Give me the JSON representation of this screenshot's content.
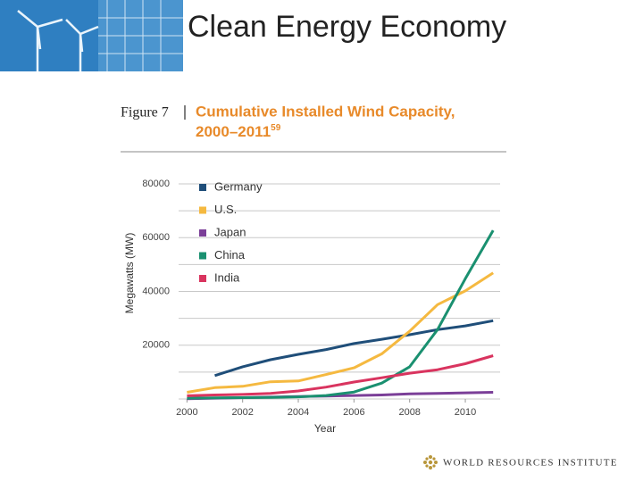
{
  "slide_title": "Clean Energy Economy",
  "figure_label": "Figure 7",
  "footer": "WORLD RESOURCES INSTITUTE",
  "chart_data": {
    "type": "line",
    "title": [
      "Cumulative Installed Wind Capacity,",
      "2000–2011"
    ],
    "title_superscript": "59",
    "x_label": "Year",
    "y_label": "Megawatts (MW)",
    "x": [
      2000,
      2001,
      2002,
      2003,
      2004,
      2005,
      2006,
      2007,
      2008,
      2009,
      2010,
      2011
    ],
    "xlim": [
      1999.7,
      2011.25
    ],
    "xticks": [
      2000,
      2002,
      2004,
      2006,
      2008,
      2010
    ],
    "ylim": [
      0,
      80000
    ],
    "yticks": [
      20000,
      40000,
      60000,
      80000
    ],
    "ygrid": [
      0,
      10000,
      20000,
      30000,
      40000,
      50000,
      60000,
      70000,
      80000
    ],
    "series": [
      {
        "name": "Germany",
        "color": "#1f4e79",
        "values": [
          null,
          8700,
          12000,
          14600,
          16600,
          18400,
          20600,
          22200,
          23900,
          25800,
          27200,
          29100
        ]
      },
      {
        "name": "U.S.",
        "color": "#f5b940",
        "values": [
          2500,
          4200,
          4700,
          6400,
          6700,
          9100,
          11600,
          16800,
          25200,
          35100,
          40200,
          46900
        ]
      },
      {
        "name": "Japan",
        "color": "#7b3f98",
        "values": [
          100,
          300,
          500,
          700,
          900,
          1100,
          1300,
          1500,
          1900,
          2100,
          2300,
          2500
        ]
      },
      {
        "name": "China",
        "color": "#1a9070",
        "values": [
          300,
          400,
          500,
          600,
          800,
          1300,
          2600,
          5900,
          12000,
          25800,
          44700,
          62700
        ]
      },
      {
        "name": "India",
        "color": "#d9345f",
        "values": [
          1200,
          1500,
          1700,
          2100,
          3000,
          4400,
          6300,
          7900,
          9600,
          10900,
          13100,
          16100
        ]
      }
    ]
  }
}
